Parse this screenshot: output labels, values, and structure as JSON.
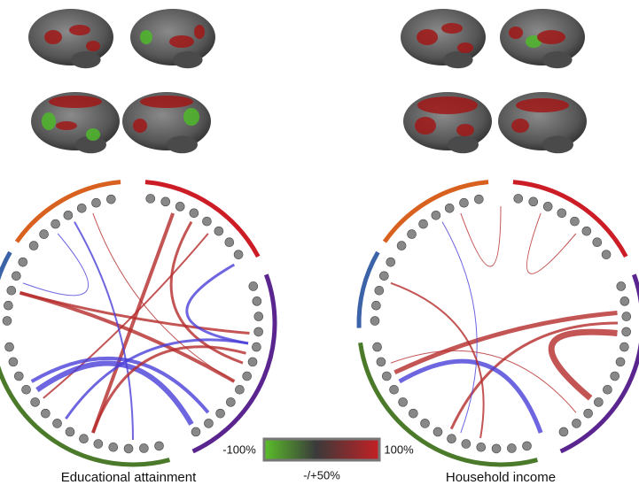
{
  "figure": {
    "panels": [
      {
        "caption": "Educational attainment"
      },
      {
        "caption": "Household income"
      }
    ],
    "colorbar": {
      "min_label": "-100%",
      "max_label": "100%",
      "mid_label": "-/+50%"
    }
  }
}
